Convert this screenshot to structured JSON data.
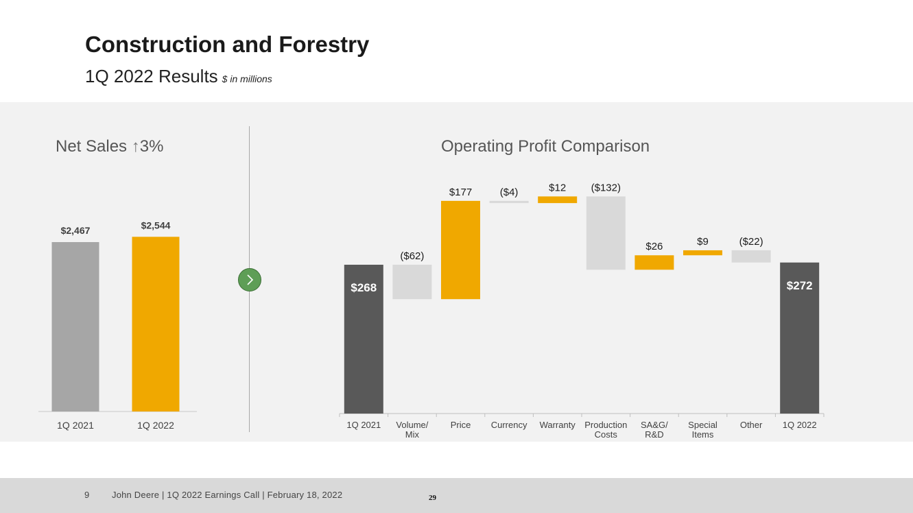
{
  "header": {
    "title": "Construction and Forestry",
    "subtitle": "1Q 2022 Results",
    "unit_note": "$ in millions"
  },
  "net_sales": {
    "title": "Net Sales",
    "arrow": "↑",
    "change": "3%"
  },
  "operating_profit": {
    "title": "Operating Profit Comparison"
  },
  "footer": {
    "slide_number": "9",
    "text": "John Deere | 1Q 2022 Earnings Call | February 18, 2022",
    "page_number": "29"
  },
  "colors": {
    "gold": "#F0A800",
    "gray_bar": "#A6A6A6",
    "dark": "#595959",
    "light": "#D9D9D9",
    "panel": "#F2F2F2",
    "accent_green": "#5E9E56"
  },
  "chart_data": [
    {
      "type": "bar",
      "title": "Net Sales ↑3%",
      "categories": [
        "1Q 2021",
        "1Q 2022"
      ],
      "values": [
        2467,
        2544
      ],
      "labels": [
        "$2,467",
        "$2,544"
      ],
      "colors": [
        "#A6A6A6",
        "#F0A800"
      ],
      "xlabel": "",
      "ylabel": "",
      "grid": false
    },
    {
      "type": "bar",
      "subtype": "waterfall",
      "title": "Operating Profit Comparison",
      "categories": [
        "1Q 2021",
        "Volume/\nMix",
        "Price",
        "Currency",
        "Warranty",
        "Production\nCosts",
        "SA&G/\nR&D",
        "Special\nItems",
        "Other",
        "1Q 2022"
      ],
      "values": [
        268,
        -62,
        177,
        -4,
        12,
        -132,
        26,
        9,
        -22,
        272
      ],
      "kinds": [
        "total",
        "delta",
        "delta",
        "delta",
        "delta",
        "delta",
        "delta",
        "delta",
        "delta",
        "total"
      ],
      "labels": [
        "$268",
        "($62)",
        "$177",
        "($4)",
        "$12",
        "($132)",
        "$26",
        "$9",
        "($22)",
        "$272"
      ],
      "colors": {
        "total": "#595959",
        "increase": "#F0A800",
        "decrease": "#D9D9D9"
      },
      "xlabel": "",
      "ylabel": "",
      "grid": false
    }
  ]
}
